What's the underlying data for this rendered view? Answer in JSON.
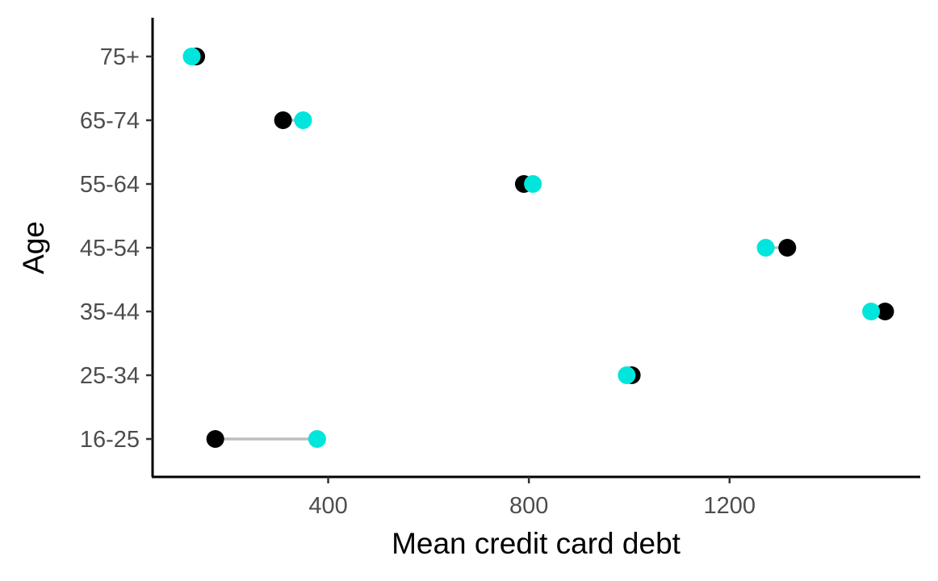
{
  "chart_data": {
    "type": "dumbbell",
    "xlabel": "Mean credit card debt",
    "ylabel": "Age",
    "xlim": [
      50,
      1580
    ],
    "x_ticks": [
      400,
      800,
      1200
    ],
    "categories": [
      "16-25",
      "25-34",
      "35-44",
      "45-54",
      "55-64",
      "65-74",
      "75+"
    ],
    "series": [
      {
        "color": "#000000",
        "values": [
          175,
          1005,
          1510,
          1315,
          790,
          310,
          137
        ]
      },
      {
        "color": "#00e5dc",
        "values": [
          378,
          995,
          1482,
          1272,
          808,
          350,
          128
        ]
      }
    ],
    "connector_color": "#bebebe",
    "grid": false,
    "legend": "none"
  }
}
